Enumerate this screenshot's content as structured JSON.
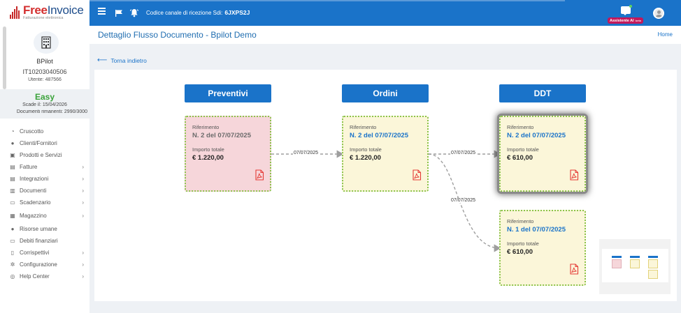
{
  "app": {
    "logo": {
      "free": "Free",
      "invoice": "Invoice",
      "subtitle": "Fatturazione elettronica"
    },
    "account": {
      "name": "BPilot",
      "vat": "IT10203040506",
      "user": "Utente: 487566",
      "plan": "Easy",
      "expiry": "Scade il: 15/04/2026",
      "docs": "Documenti rimanenti: 2990/3000"
    }
  },
  "sidebar": {
    "items": [
      {
        "label": "Cruscotto",
        "icon": "dashboard-icon",
        "glyph": "◔",
        "chevron": false
      },
      {
        "label": "Clienti/Fornitori",
        "icon": "person-icon",
        "glyph": "●",
        "chevron": false
      },
      {
        "label": "Prodotti e Servizi",
        "icon": "basket-icon",
        "glyph": "▣",
        "chevron": false
      },
      {
        "label": "Fatture",
        "icon": "document-icon",
        "glyph": "▤",
        "chevron": true
      },
      {
        "label": "Integrazioni",
        "icon": "document-icon",
        "glyph": "▤",
        "chevron": true
      },
      {
        "label": "Documenti",
        "icon": "documents-icon",
        "glyph": "▥",
        "chevron": true
      },
      {
        "label": "Scadenzario",
        "icon": "money-icon",
        "glyph": "▭",
        "chevron": true
      },
      {
        "label": "Magazzino",
        "icon": "warehouse-icon",
        "glyph": "▦",
        "chevron": true
      },
      {
        "label": "Risorse umane",
        "icon": "person-icon",
        "glyph": "●",
        "chevron": false
      },
      {
        "label": "Debiti finanziari",
        "icon": "money-icon",
        "glyph": "▭",
        "chevron": false
      },
      {
        "label": "Corrispettivi",
        "icon": "receipt-icon",
        "glyph": "▯",
        "chevron": true
      },
      {
        "label": "Configurazione",
        "icon": "gear-icon",
        "glyph": "✲",
        "chevron": true
      },
      {
        "label": "Help Center",
        "icon": "lifebuoy-icon",
        "glyph": "◎",
        "chevron": true
      }
    ],
    "chevron_glyph": "›"
  },
  "topbar": {
    "sdi_label": "Codice canale di ricezione Sdi:",
    "sdi_code": "6JXPS2J",
    "ai_label": "Assistente AI",
    "ai_tag": "beta"
  },
  "page": {
    "title": "Dettaglio Flusso Documento - Bpilot Demo",
    "home": "Home",
    "back": "Torna indietro",
    "back_arrow": "⟵"
  },
  "flow": {
    "columns": [
      "Preventivi",
      "Ordini",
      "DDT"
    ],
    "ref_label": "Riferimento",
    "total_label": "Importo totale",
    "cards": [
      {
        "ref": "N. 2 del 07/07/2025",
        "amount": "€ 1.220,00"
      },
      {
        "ref": "N. 2 del 07/07/2025",
        "amount": "€ 1.220,00"
      },
      {
        "ref": "N. 2 del 07/07/2025",
        "amount": "€ 610,00"
      },
      {
        "ref": "N. 1 del 07/07/2025",
        "amount": "€ 610,00"
      }
    ],
    "edges": [
      "07/07/2025",
      "07/07/2025",
      "07/07/2025"
    ]
  },
  "colors": {
    "primary": "#1a73c9",
    "card_pink": "#f6d6da",
    "card_cream": "#fbf6d9",
    "border_green": "#8bc34a",
    "pdf_red": "#e53935"
  }
}
